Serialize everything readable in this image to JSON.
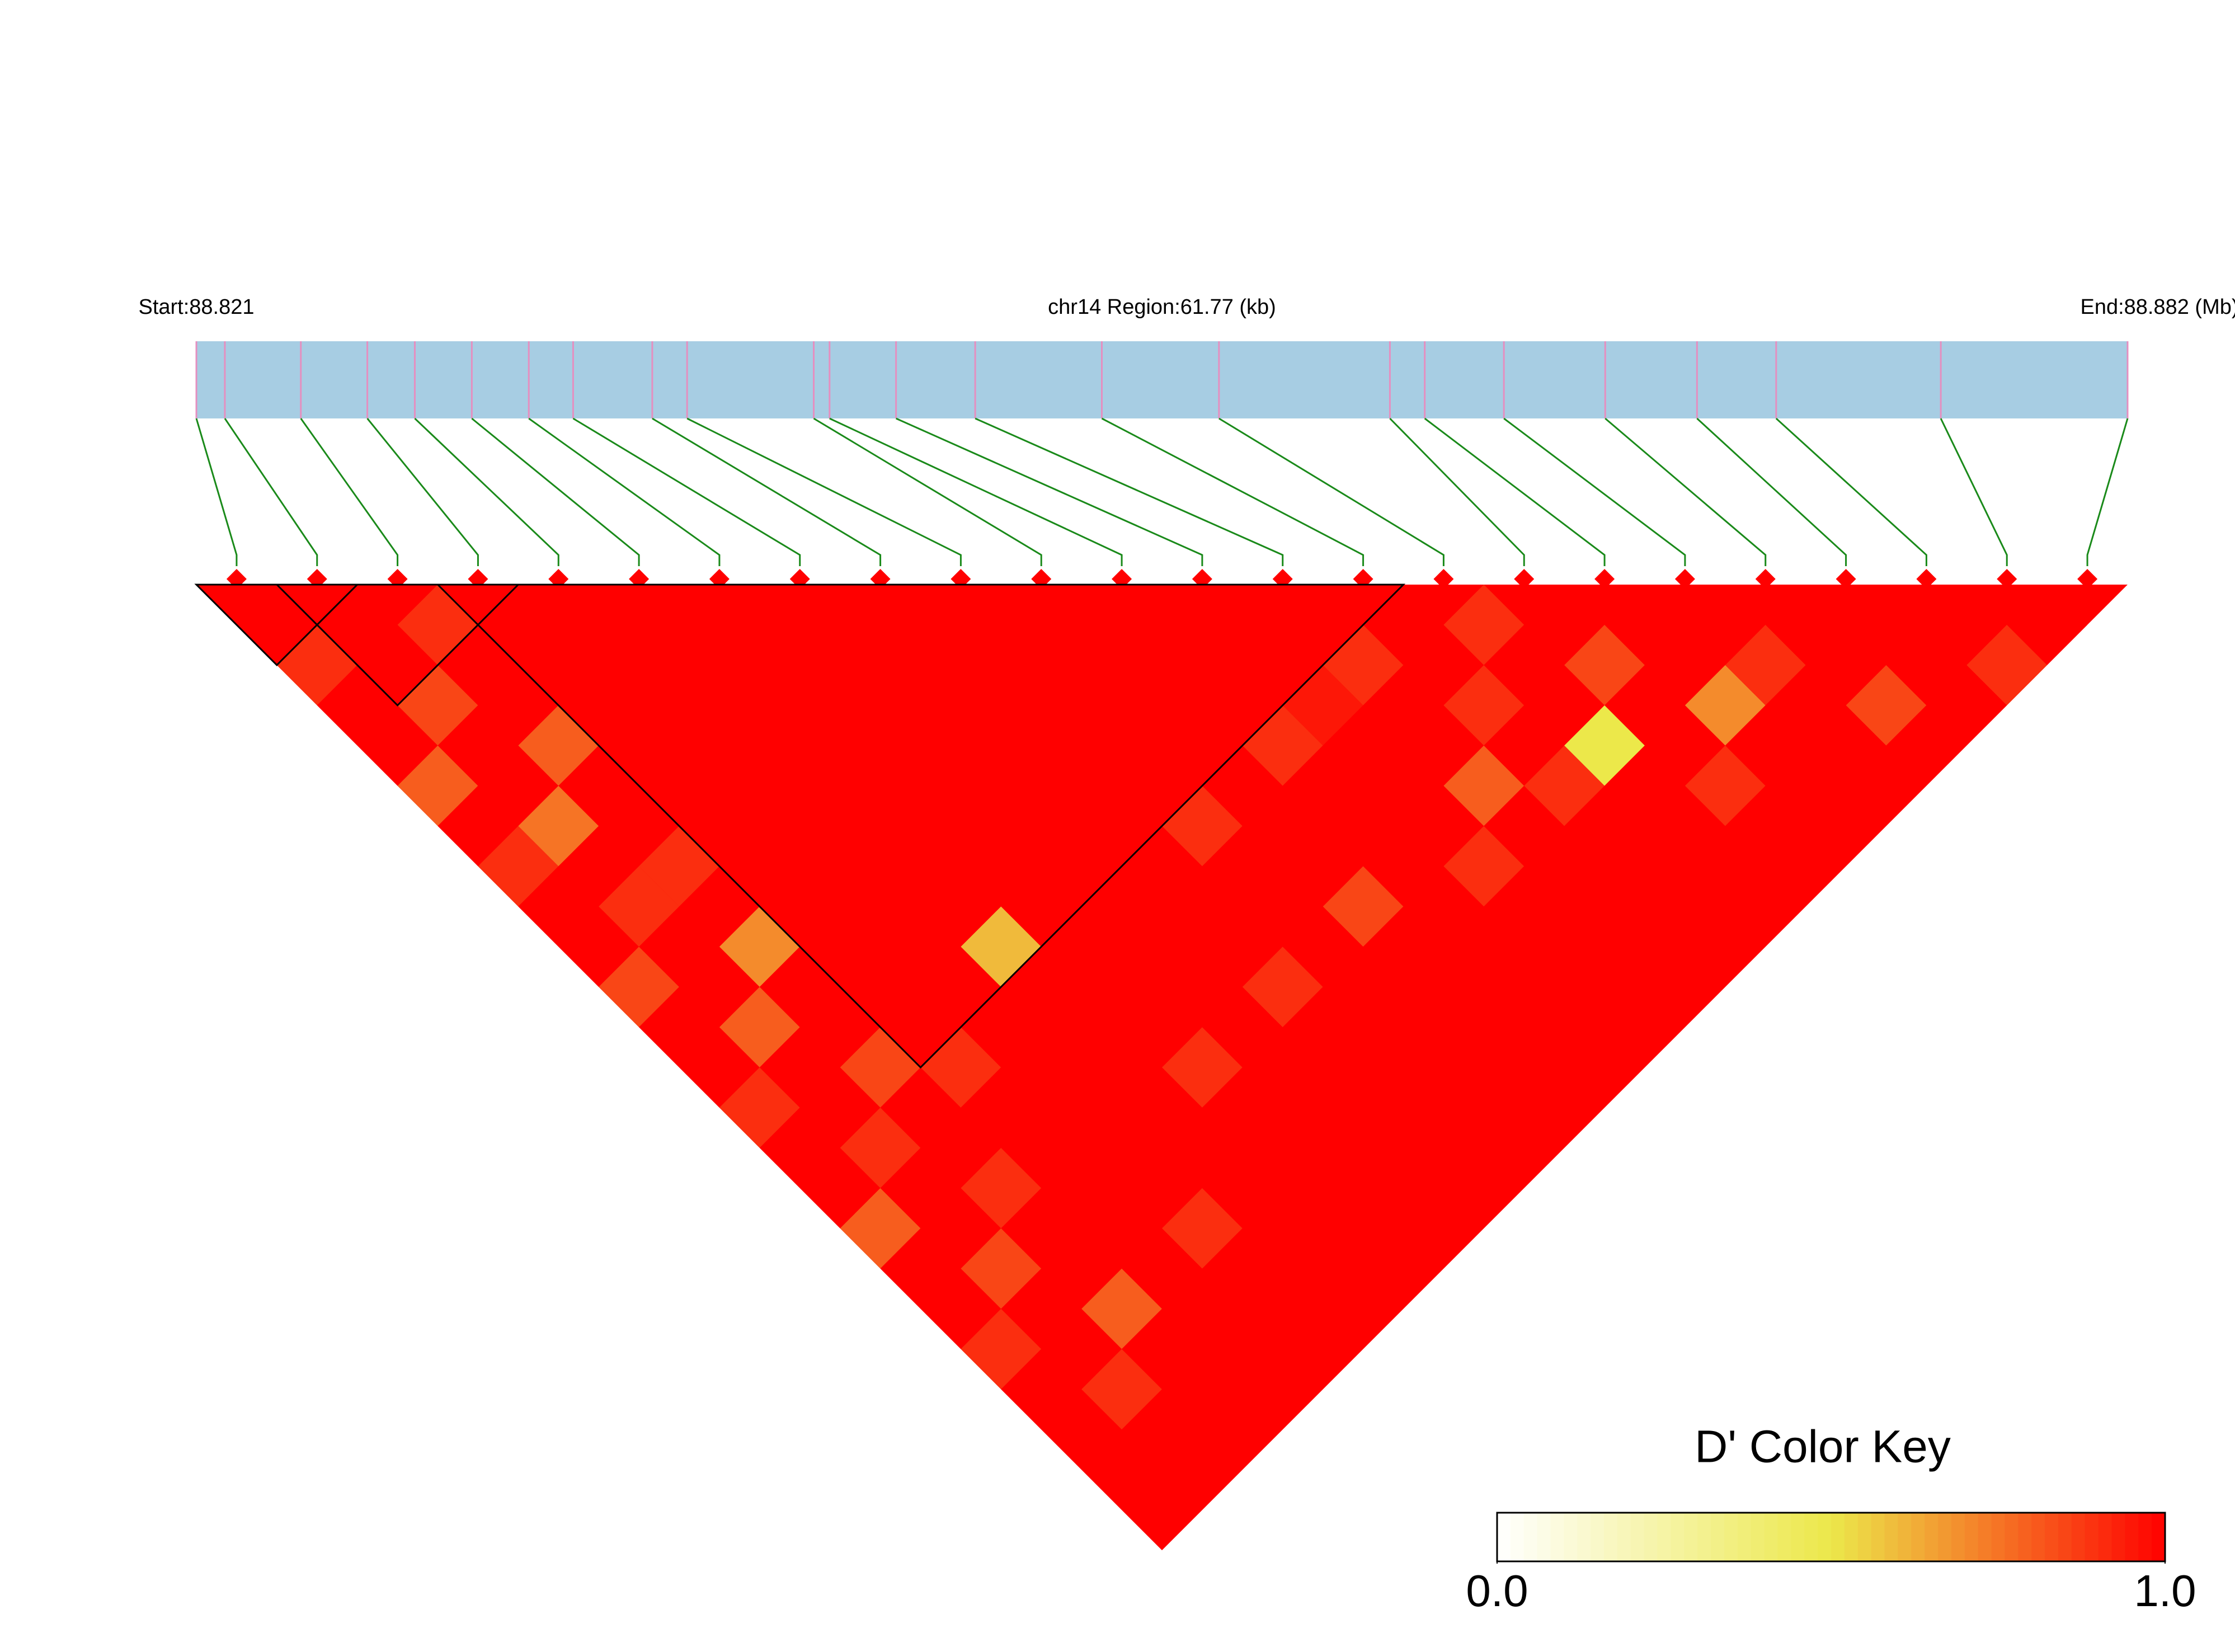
{
  "chart_data": {
    "type": "ld_heatmap",
    "title": "chr14 Region:61.77 (kb)",
    "region_start": {
      "value": 88.821,
      "label": "Start:88.821"
    },
    "region_end": {
      "value": 88.882,
      "label": "End:88.882 (Mb)"
    },
    "snp_positions": [
      88.821,
      88.8219,
      88.8243,
      88.8264,
      88.8279,
      88.8297,
      88.8315,
      88.8329,
      88.8354,
      88.8365,
      88.8405,
      88.841,
      88.8431,
      88.8456,
      88.8496,
      88.8533,
      88.8587,
      88.8598,
      88.8623,
      88.8655,
      88.8684,
      88.8709,
      88.8761,
      88.882
    ],
    "dprime": [
      [
        1,
        0.9,
        1,
        1,
        0.8,
        1,
        0.9,
        1,
        1,
        0.85,
        1,
        1,
        0.9,
        1,
        1,
        0.8,
        1,
        1,
        0.9,
        1,
        1,
        1,
        1
      ],
      [
        1,
        1,
        0.85,
        1,
        1,
        0.75,
        1,
        0.9,
        1,
        1,
        0.8,
        1,
        1,
        0.9,
        1,
        1,
        0.85,
        1,
        1,
        0.9,
        1,
        1
      ],
      [
        0.9,
        1,
        1,
        0.8,
        1,
        1,
        0.9,
        1,
        0.7,
        1,
        1,
        0.85,
        1,
        1,
        0.9,
        1,
        1,
        0.8,
        1,
        1,
        1
      ],
      [
        1,
        1,
        1,
        1,
        1,
        1,
        1,
        1,
        1,
        1,
        1,
        0.9,
        1,
        1,
        1,
        1,
        1,
        1,
        1,
        1
      ],
      [
        1,
        1,
        1,
        1,
        1,
        1,
        1,
        1,
        1,
        1,
        1,
        1,
        1,
        1,
        1,
        0.9,
        1,
        1,
        1
      ],
      [
        1,
        1,
        1,
        1,
        1,
        1,
        1,
        1,
        0.6,
        1,
        1,
        1,
        1,
        1,
        1,
        1,
        1,
        1
      ],
      [
        1,
        1,
        1,
        1,
        1,
        1,
        1,
        1,
        1,
        1,
        1,
        0.9,
        1,
        1,
        1,
        1,
        1
      ],
      [
        1,
        1,
        1,
        1,
        1,
        1,
        1,
        1,
        1,
        1,
        1,
        1,
        1,
        1,
        1,
        1
      ],
      [
        1,
        1,
        1,
        1,
        1,
        1,
        1,
        1,
        1,
        0.9,
        1,
        1,
        1,
        1,
        1
      ],
      [
        1,
        1,
        1,
        1,
        1,
        0.9,
        1,
        1,
        1,
        1,
        1,
        1,
        1,
        1
      ],
      [
        1,
        1,
        1,
        1,
        1,
        1,
        1,
        0.85,
        1,
        1,
        1,
        1,
        1
      ],
      [
        1,
        1,
        1,
        0.9,
        1,
        1,
        1,
        1,
        1,
        1,
        1,
        1
      ],
      [
        1,
        1,
        0.95,
        1,
        1,
        1,
        0.9,
        1,
        1,
        1,
        1
      ],
      [
        1,
        0.9,
        1,
        1,
        0.8,
        1,
        1,
        1,
        1,
        1
      ],
      [
        1,
        1,
        0.9,
        1,
        0.9,
        1,
        1,
        1,
        1
      ],
      [
        0.9,
        1,
        1,
        0.5,
        1,
        1,
        1,
        1
      ],
      [
        1,
        0.85,
        1,
        1,
        0.9,
        1,
        1
      ],
      [
        1,
        1,
        0.7,
        1,
        1,
        1
      ],
      [
        1,
        0.9,
        1,
        1,
        1
      ],
      [
        1,
        1,
        0.85,
        1
      ],
      [
        1,
        1,
        1
      ],
      [
        1,
        0.9
      ],
      [
        1
      ]
    ],
    "blocks": [
      [
        0,
        1
      ],
      [
        1,
        3
      ],
      [
        3,
        14
      ]
    ],
    "bar_color": "#a7cde3",
    "snp_line_color": "#e58fc0",
    "connector_color": "#1a8a1a",
    "colormap": [
      "#ffffff",
      "#ece84a",
      "#ff0000"
    ],
    "key_title": "D' Color Key",
    "key_range": [
      0,
      1
    ],
    "key_ticks": [
      {
        "value": 0,
        "label": "0.0"
      },
      {
        "value": 1,
        "label": "1.0"
      }
    ]
  }
}
